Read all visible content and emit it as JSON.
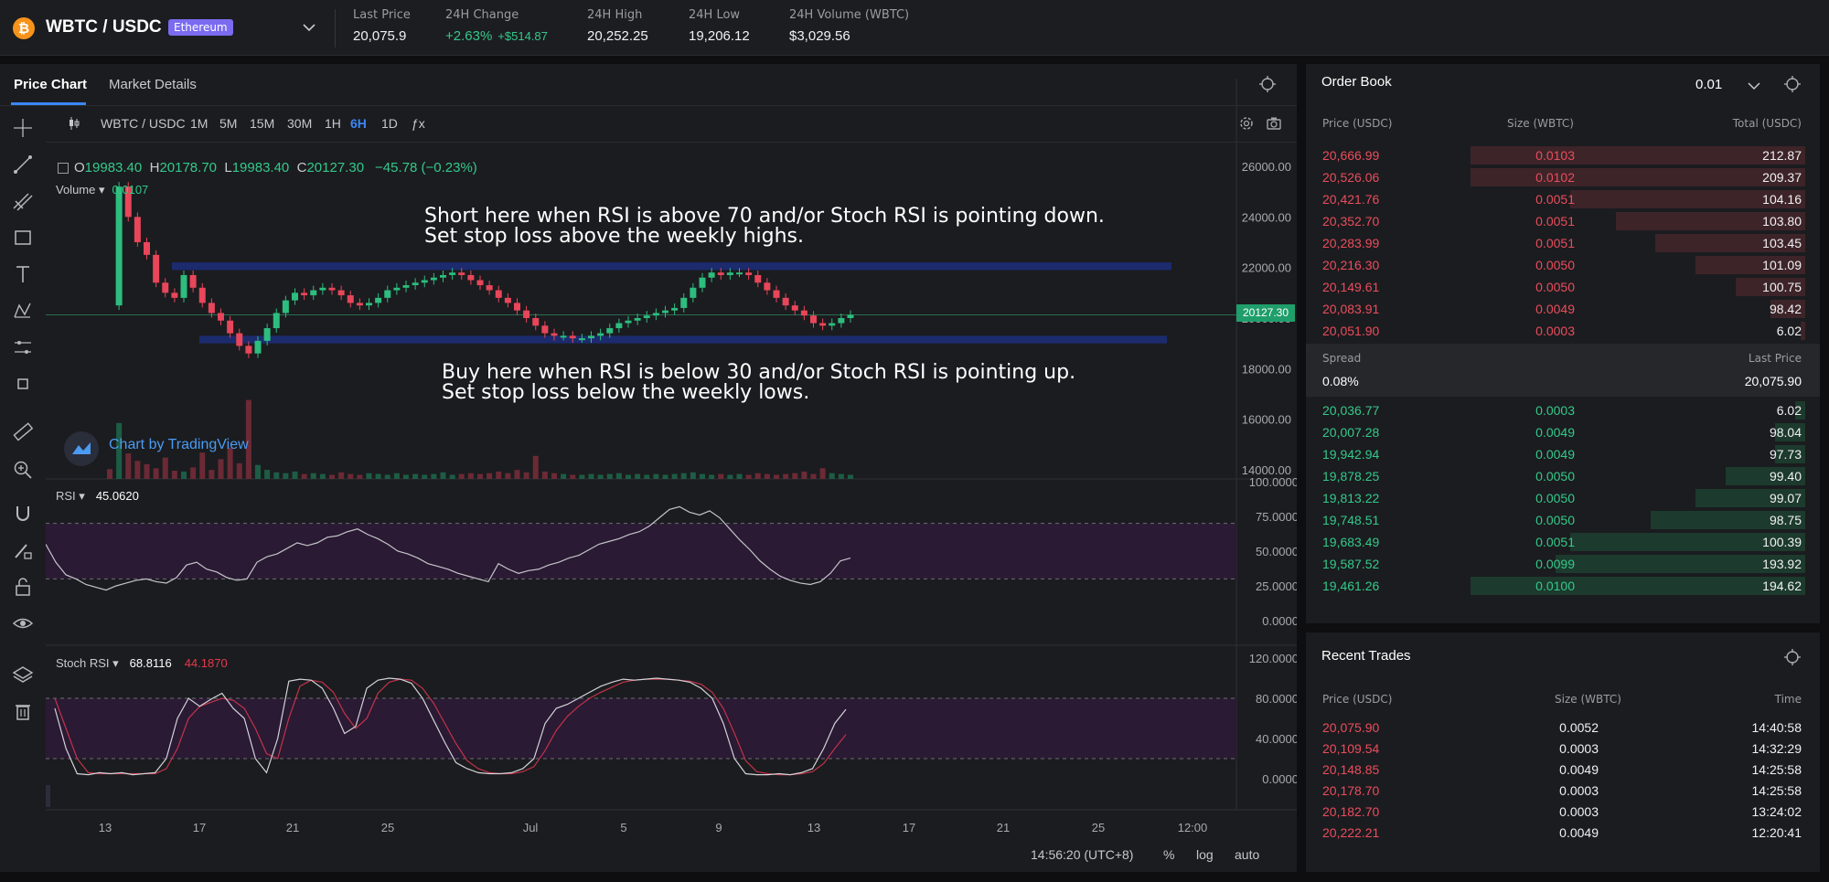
{
  "header": {
    "coin_symbol": "₿",
    "pair": "WBTC / USDC",
    "network": "Ethereum",
    "stats": [
      {
        "label": "Last Price",
        "value": "20,075.9"
      },
      {
        "label": "24H Change",
        "value": "+2.63%",
        "secondary": "+$514.87"
      },
      {
        "label": "24H High",
        "value": "20,252.25"
      },
      {
        "label": "24H Low",
        "value": "19,206.12"
      },
      {
        "label": "24H Volume (WBTC)",
        "value": "$3,029.56"
      }
    ]
  },
  "chart_panel": {
    "tabs": [
      {
        "label": "Price Chart",
        "active": true
      },
      {
        "label": "Market Details",
        "active": false
      }
    ],
    "tv_toolbar": {
      "symbol": "WBTC / USDC",
      "intervals": [
        "1M",
        "5M",
        "15M",
        "30M",
        "1H",
        "6H",
        "1D"
      ],
      "active_interval": "6H",
      "indicator_glyph": "ƒx"
    },
    "ohlc": {
      "o_label": "O",
      "o": "19983.40",
      "h_label": "H",
      "h": "20178.70",
      "l_label": "L",
      "l": "19983.40",
      "c_label": "C",
      "c": "20127.30",
      "change": "−45.78 (−0.23%)"
    },
    "volume": {
      "label": "Volume",
      "value": "0.0107"
    },
    "rsi": {
      "label": "RSI",
      "value": "45.0620"
    },
    "stoch": {
      "label": "Stoch RSI",
      "k": "68.8116",
      "d": "44.1870"
    },
    "annotations": {
      "short_line1": "Short here when RSI is above 70 and/or Stoch RSI is pointing down.",
      "short_line2": "Set stop loss above the weekly highs.",
      "buy_line1": "Buy here when RSI is below 30 and/or Stoch RSI is pointing up.",
      "buy_line2": "Set stop loss below the weekly lows."
    },
    "credit": "Chart by TradingView",
    "price_tag": "20127.30",
    "footer": {
      "time": "14:56:20 (UTC+8)",
      "percent": "%",
      "log": "log",
      "auto": "auto"
    },
    "colors": {
      "up": "#2dbd7e",
      "down": "#e8465a",
      "band": "#1c2b6e",
      "zone": "#2a1a33"
    }
  },
  "chart_data": {
    "type": "line",
    "series_price": [
      20500,
      25200,
      24000,
      23000,
      22500,
      21400,
      21000,
      20800,
      21700,
      21200,
      20600,
      20200,
      19900,
      19400,
      18900,
      18600,
      19100,
      19600,
      20200,
      20700,
      21000,
      20900,
      21100,
      21200,
      21100,
      20900,
      20600,
      20500,
      20600,
      20800,
      21100,
      21200,
      21300,
      21400,
      21500,
      21600,
      21700,
      21800,
      21700,
      21500,
      21300,
      21100,
      20800,
      20600,
      20300,
      20000,
      19700,
      19400,
      19300,
      19300,
      19200,
      19200,
      19300,
      19400,
      19600,
      19800,
      19900,
      20000,
      20100,
      20200,
      20300,
      20400,
      20800,
      21200,
      21600,
      21800,
      21700,
      21800,
      21800,
      21700,
      21400,
      21100,
      20800,
      20500,
      20300,
      20100,
      19800,
      19700,
      19800,
      20000,
      20127
    ],
    "series_volume": [
      1.2,
      6.8,
      3.1,
      2.2,
      1.8,
      1.3,
      2.6,
      1.0,
      0.9,
      1.4,
      3.2,
      1.1,
      2.4,
      3.8,
      1.9,
      9.6,
      1.7,
      1.1,
      0.8,
      0.7,
      0.9,
      0.6,
      0.7,
      0.6,
      0.5,
      0.8,
      0.6,
      0.5,
      0.7,
      0.6,
      0.5,
      0.7,
      0.5,
      0.6,
      0.5,
      0.6,
      0.8,
      0.5,
      0.6,
      0.7,
      0.6,
      0.7,
      0.9,
      0.7,
      1.1,
      0.8,
      2.8,
      0.9,
      0.7,
      0.6,
      0.5,
      0.5,
      0.6,
      0.5,
      0.6,
      0.7,
      0.5,
      0.6,
      0.5,
      0.6,
      0.5,
      0.6,
      0.7,
      0.8,
      0.6,
      0.5,
      0.6,
      0.5,
      0.6,
      0.5,
      0.7,
      0.6,
      0.5,
      0.6,
      0.7,
      0.9,
      0.6,
      1.3,
      0.7,
      0.6,
      0.5
    ],
    "series_rsi": [
      55,
      42,
      33,
      30,
      26,
      24,
      22,
      25,
      27,
      29,
      30,
      28,
      27,
      31,
      40,
      42,
      37,
      35,
      31,
      29,
      30,
      42,
      46,
      48,
      52,
      56,
      54,
      56,
      60,
      61,
      64,
      66,
      62,
      59,
      55,
      50,
      48,
      45,
      41,
      39,
      37,
      34,
      32,
      30,
      28,
      41,
      37,
      34,
      36,
      37,
      40,
      42,
      45,
      47,
      51,
      55,
      57,
      59,
      62,
      64,
      68,
      74,
      80,
      82,
      78,
      76,
      79,
      74,
      66,
      58,
      51,
      43,
      37,
      32,
      29,
      27,
      26,
      28,
      34,
      43,
      45
    ],
    "series_stoch_k": [
      70,
      30,
      5,
      4,
      6,
      5,
      6,
      4,
      5,
      6,
      20,
      60,
      80,
      72,
      79,
      85,
      70,
      60,
      20,
      6,
      40,
      97,
      99,
      98,
      90,
      70,
      45,
      52,
      90,
      98,
      100,
      99,
      95,
      80,
      58,
      36,
      16,
      10,
      6,
      5,
      5,
      6,
      10,
      20,
      55,
      70,
      74,
      80,
      86,
      92,
      96,
      99,
      98,
      99,
      100,
      99,
      98,
      96,
      90,
      80,
      55,
      20,
      5,
      4,
      4,
      5,
      4,
      6,
      10,
      30,
      55,
      69
    ],
    "series_stoch_d": [
      80,
      50,
      20,
      6,
      5,
      5,
      5,
      5,
      5,
      5,
      10,
      30,
      60,
      72,
      76,
      80,
      78,
      70,
      50,
      25,
      20,
      60,
      92,
      98,
      96,
      86,
      65,
      50,
      60,
      85,
      96,
      99,
      98,
      90,
      75,
      55,
      35,
      18,
      10,
      6,
      5,
      5,
      7,
      12,
      28,
      48,
      62,
      72,
      80,
      86,
      91,
      96,
      98,
      99,
      99,
      99,
      98,
      97,
      94,
      86,
      70,
      45,
      18,
      7,
      5,
      4,
      4,
      5,
      7,
      15,
      30,
      44
    ],
    "price_axis": [
      "26000.00",
      "24000.00",
      "22000.00",
      "20000.00",
      "18000.00",
      "16000.00",
      "14000.00"
    ],
    "rsi_axis": [
      "100.0000",
      "75.0000",
      "50.0000",
      "25.0000",
      "0.0000"
    ],
    "stoch_axis": [
      "120.0000",
      "80.0000",
      "40.0000",
      "0.0000"
    ],
    "x_ticks": [
      "13",
      "17",
      "21",
      "25",
      "Jul",
      "5",
      "9",
      "13",
      "17",
      "21",
      "25",
      "12:00"
    ],
    "resistance_band": [
      21900,
      22200
    ],
    "support_band": [
      19000,
      19300
    ],
    "rsi_levels": [
      70,
      30
    ],
    "stoch_levels": [
      80,
      20
    ]
  },
  "order_book": {
    "title": "Order Book",
    "precision": "0.01",
    "columns": [
      "Price (USDC)",
      "Size (WBTC)",
      "Total (USDC)"
    ],
    "asks": [
      {
        "price": "20,666.99",
        "size": "0.0103",
        "total": "212.87",
        "depth": 0.67
      },
      {
        "price": "20,526.06",
        "size": "0.0102",
        "total": "209.37",
        "depth": 0.67
      },
      {
        "price": "20,421.76",
        "size": "0.0051",
        "total": "104.16",
        "depth": 0.47
      },
      {
        "price": "20,352.70",
        "size": "0.0051",
        "total": "103.80",
        "depth": 0.38
      },
      {
        "price": "20,283.99",
        "size": "0.0051",
        "total": "103.45",
        "depth": 0.3
      },
      {
        "price": "20,216.30",
        "size": "0.0050",
        "total": "101.09",
        "depth": 0.22
      },
      {
        "price": "20,149.61",
        "size": "0.0050",
        "total": "100.75",
        "depth": 0.14
      },
      {
        "price": "20,083.91",
        "size": "0.0049",
        "total": "98.42",
        "depth": 0.07
      },
      {
        "price": "20,051.90",
        "size": "0.0003",
        "total": "6.02",
        "depth": 0.01
      }
    ],
    "spread_label": "Spread",
    "spread_value": "0.08%",
    "last_price_label": "Last Price",
    "last_price_value": "20,075.90",
    "bids": [
      {
        "price": "20,036.77",
        "size": "0.0003",
        "total": "6.02",
        "depth": 0.02
      },
      {
        "price": "20,007.28",
        "size": "0.0049",
        "total": "98.04",
        "depth": 0.06
      },
      {
        "price": "19,942.94",
        "size": "0.0049",
        "total": "97.73",
        "depth": 0.06
      },
      {
        "price": "19,878.25",
        "size": "0.0050",
        "total": "99.40",
        "depth": 0.16
      },
      {
        "price": "19,813.22",
        "size": "0.0050",
        "total": "99.07",
        "depth": 0.22
      },
      {
        "price": "19,748.51",
        "size": "0.0050",
        "total": "98.75",
        "depth": 0.31
      },
      {
        "price": "19,683.49",
        "size": "0.0051",
        "total": "100.39",
        "depth": 0.47
      },
      {
        "price": "19,587.52",
        "size": "0.0099",
        "total": "193.92",
        "depth": 0.5
      },
      {
        "price": "19,461.26",
        "size": "0.0100",
        "total": "194.62",
        "depth": 0.67
      }
    ]
  },
  "recent_trades": {
    "title": "Recent Trades",
    "columns": [
      "Price (USDC)",
      "Size (WBTC)",
      "Time"
    ],
    "rows": [
      {
        "price": "20,075.90",
        "size": "0.0052",
        "time": "14:40:58"
      },
      {
        "price": "20,109.54",
        "size": "0.0003",
        "time": "14:32:29"
      },
      {
        "price": "20,148.85",
        "size": "0.0049",
        "time": "14:25:58"
      },
      {
        "price": "20,178.70",
        "size": "0.0003",
        "time": "14:25:58"
      },
      {
        "price": "20,182.70",
        "size": "0.0003",
        "time": "13:24:02"
      },
      {
        "price": "20,222.21",
        "size": "0.0049",
        "time": "12:20:41"
      }
    ]
  }
}
